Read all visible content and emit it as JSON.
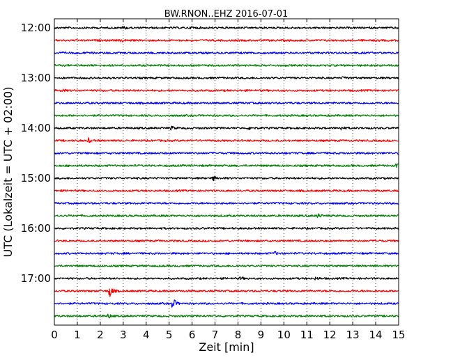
{
  "chart_data": {
    "type": "line",
    "title": "BW.RNON..EHZ 2016-07-01",
    "xlabel": "Zeit  [min]",
    "ylabel": "UTC (Lokalzeit = UTC + 02:00)",
    "xlim": [
      0,
      15
    ],
    "x_ticks": [
      "0",
      "1",
      "2",
      "3",
      "4",
      "5",
      "6",
      "7",
      "8",
      "9",
      "10",
      "11",
      "12",
      "13",
      "14",
      "15"
    ],
    "y_ticks": [
      "12:00",
      "13:00",
      "14:00",
      "15:00",
      "16:00",
      "17:00"
    ],
    "grid": "vertical dotted",
    "trace_color_cycle": [
      "#000000",
      "#ff0000",
      "#0000ff",
      "#008000"
    ],
    "traces": [
      {
        "start": "12:00",
        "events": [
          {
            "t": 3.0,
            "amp": 0.3
          },
          {
            "t": 6.0,
            "amp": 0.25
          }
        ]
      },
      {
        "start": "12:15",
        "events": [
          {
            "t": 2.9,
            "amp": 0.3
          }
        ]
      },
      {
        "start": "12:30",
        "events": []
      },
      {
        "start": "12:45",
        "events": []
      },
      {
        "start": "13:00",
        "events": [
          {
            "t": 12.6,
            "amp": 0.3
          }
        ]
      },
      {
        "start": "13:15",
        "events": [
          {
            "t": 0.3,
            "amp": 0.3
          }
        ]
      },
      {
        "start": "13:30",
        "events": []
      },
      {
        "start": "13:45",
        "events": []
      },
      {
        "start": "14:00",
        "events": [
          {
            "t": 5.1,
            "amp": 0.3
          },
          {
            "t": 8.5,
            "amp": 0.3
          },
          {
            "t": 12.5,
            "amp": 0.3
          }
        ]
      },
      {
        "start": "14:15",
        "events": [
          {
            "t": 1.5,
            "amp": 0.35
          }
        ]
      },
      {
        "start": "14:30",
        "events": []
      },
      {
        "start": "14:45",
        "events": [
          {
            "t": 14.9,
            "amp": 0.3
          }
        ]
      },
      {
        "start": "15:00",
        "events": [
          {
            "t": 6.9,
            "amp": 0.4
          }
        ]
      },
      {
        "start": "15:15",
        "events": []
      },
      {
        "start": "15:30",
        "events": []
      },
      {
        "start": "15:45",
        "events": [
          {
            "t": 11.5,
            "amp": 0.45
          }
        ]
      },
      {
        "start": "16:00",
        "events": []
      },
      {
        "start": "16:15",
        "events": []
      },
      {
        "start": "16:30",
        "events": [
          {
            "t": 9.6,
            "amp": 0.25
          }
        ]
      },
      {
        "start": "16:45",
        "events": []
      },
      {
        "start": "17:00",
        "events": [
          {
            "t": 8.1,
            "amp": 0.25
          },
          {
            "t": 11.4,
            "amp": 0.25
          }
        ]
      },
      {
        "start": "17:15",
        "events": [
          {
            "t": 2.4,
            "amp": 1.3
          }
        ]
      },
      {
        "start": "17:30",
        "events": [
          {
            "t": 5.15,
            "amp": 1.2
          }
        ]
      },
      {
        "start": "17:45",
        "events": [
          {
            "t": 2.35,
            "amp": 0.35
          }
        ]
      }
    ]
  }
}
